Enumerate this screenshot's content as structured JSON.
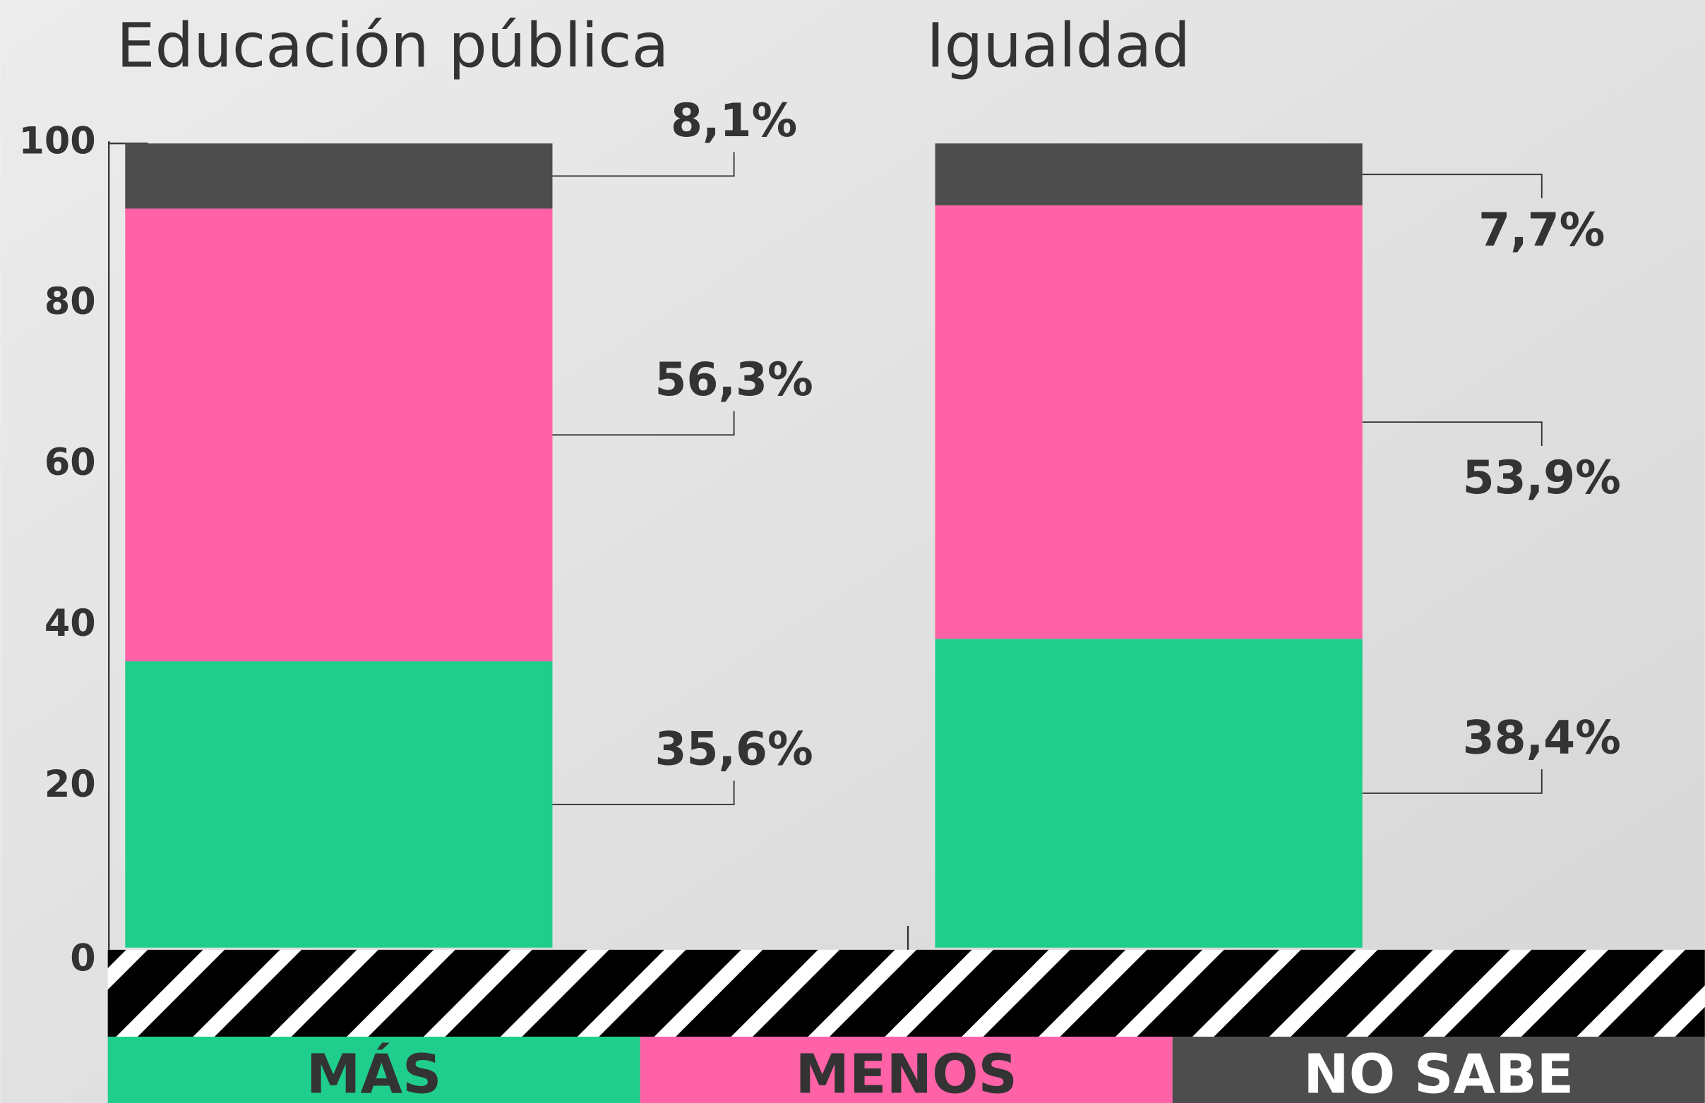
{
  "chart_data": {
    "type": "stacked-bar",
    "categories": [
      "Educación pública",
      "Igualdad"
    ],
    "series": [
      {
        "name": "MÁS",
        "color": "#1fce8c",
        "values": [
          35.6,
          38.4
        ],
        "value_labels": [
          "35,6%",
          "38,4%"
        ]
      },
      {
        "name": "MENOS",
        "color": "#ff62a6",
        "values": [
          56.3,
          53.9
        ],
        "value_labels": [
          "56,3%",
          "53,9%"
        ]
      },
      {
        "name": "NO SABE",
        "color": "#4d4d4d",
        "values": [
          8.1,
          7.7
        ],
        "value_labels": [
          "8,1%",
          "7,7%"
        ]
      }
    ],
    "ylim": [
      0,
      100
    ],
    "yticks": [
      0,
      20,
      40,
      60,
      80,
      100
    ]
  }
}
